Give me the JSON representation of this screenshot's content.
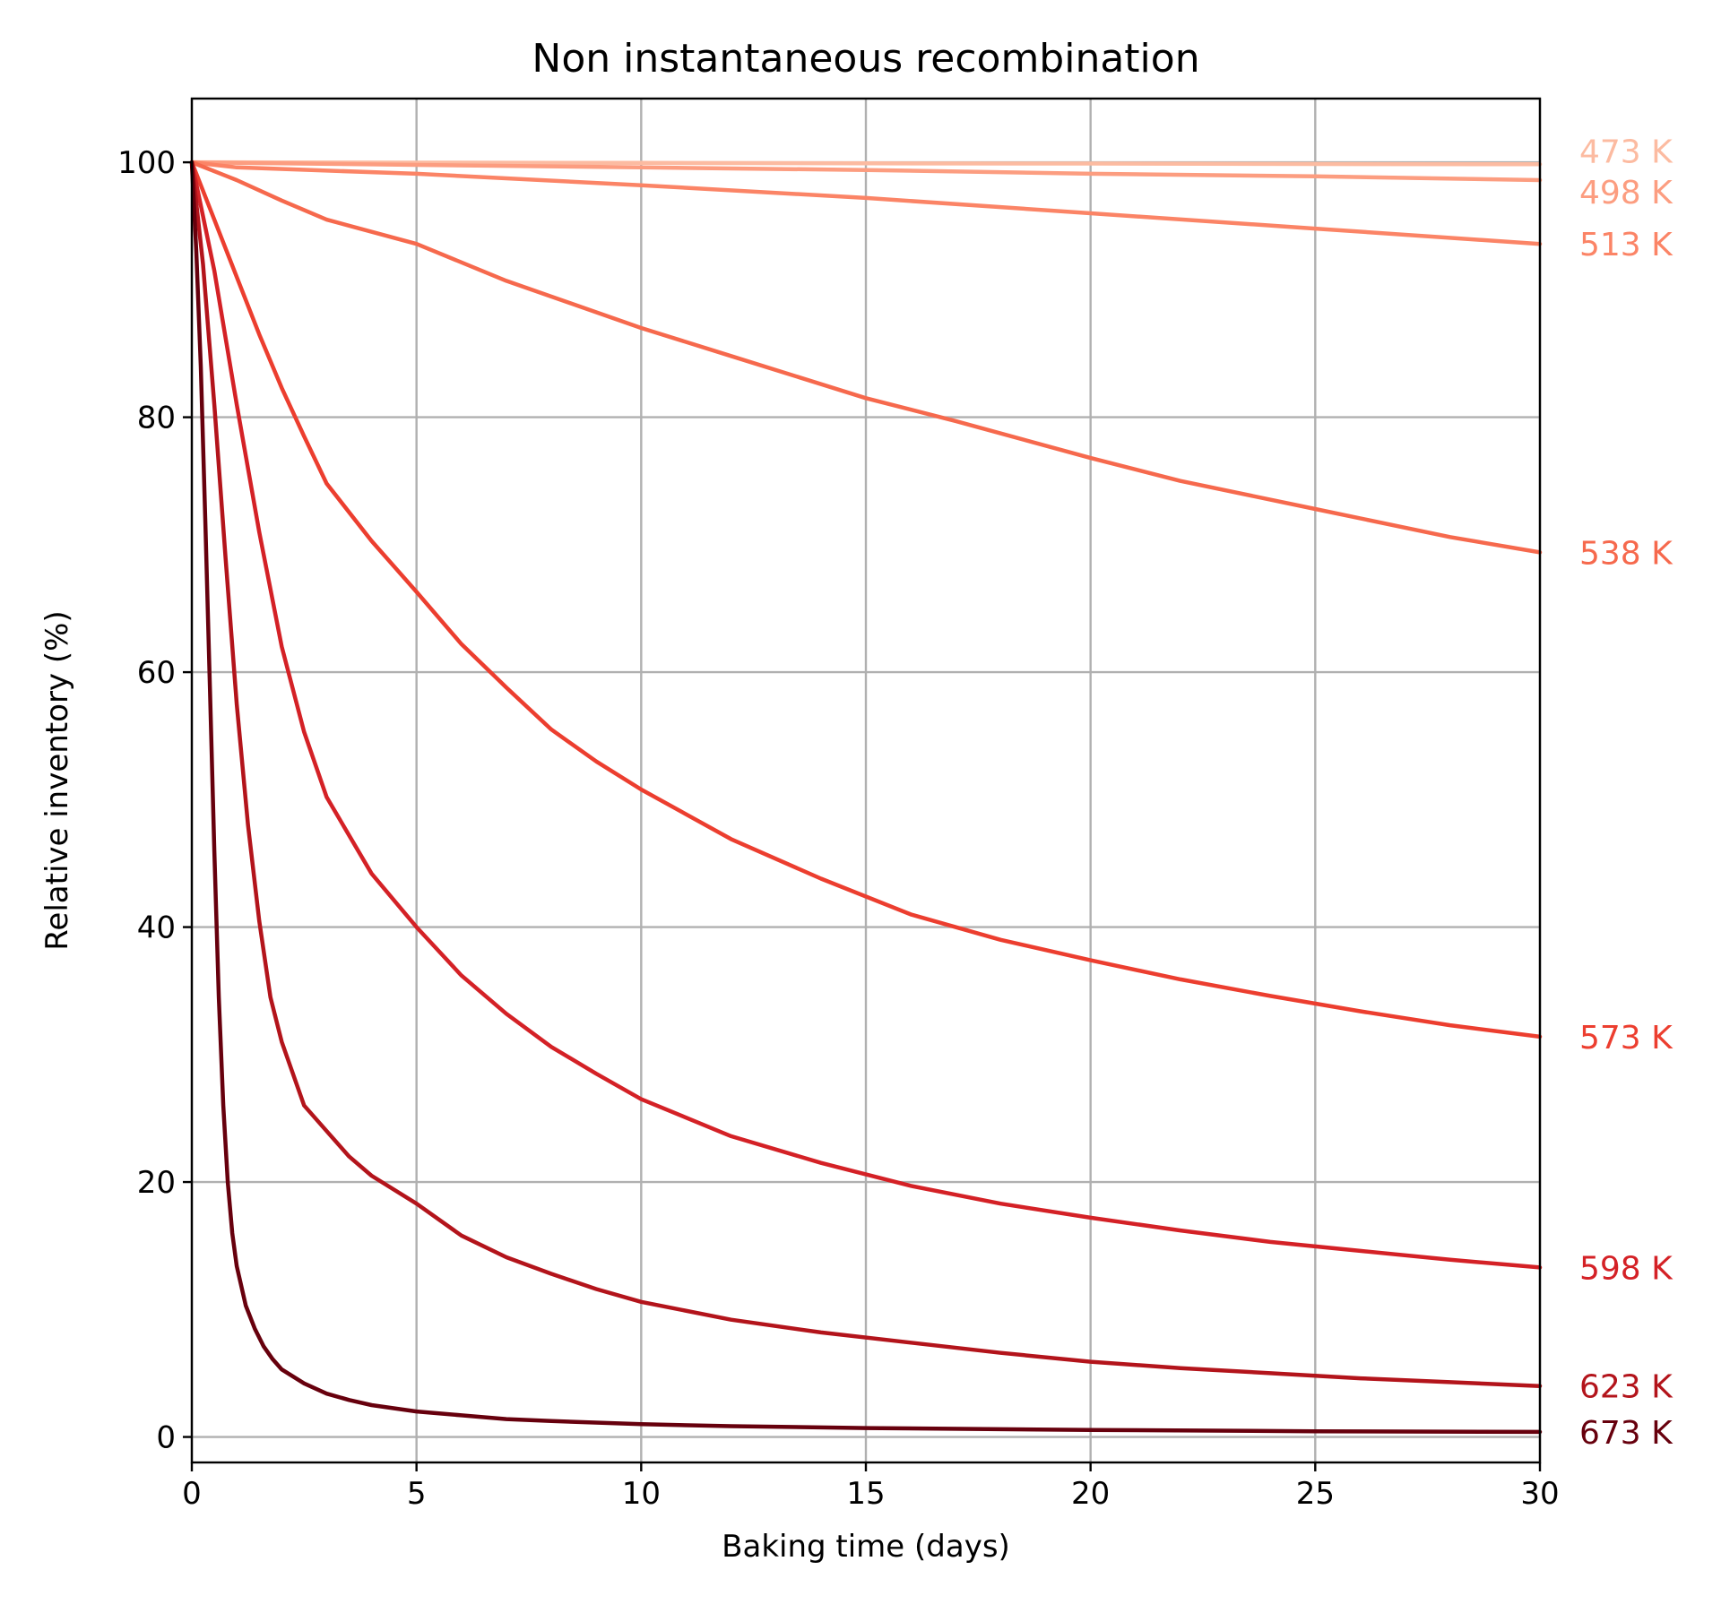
{
  "chart_data": {
    "type": "line",
    "title": "Non instantaneous recombination",
    "xlabel": "Baking time (days)",
    "ylabel": "Relative inventory (%)",
    "xlim": [
      0,
      30
    ],
    "ylim": [
      -2,
      105
    ],
    "xticks": [
      0,
      5,
      10,
      15,
      20,
      25,
      30
    ],
    "yticks": [
      0,
      20,
      40,
      60,
      80,
      100
    ],
    "grid": true,
    "legend": "none (series labels at right end of lines)",
    "series": [
      {
        "name": "473 K",
        "color": "#fcbba1",
        "x": [
          0,
          5,
          10,
          15,
          20,
          25,
          30
        ],
        "y": [
          100,
          99.97,
          99.95,
          99.92,
          99.9,
          99.87,
          99.85
        ]
      },
      {
        "name": "498 K",
        "color": "#fc9d80",
        "x": [
          0,
          5,
          10,
          15,
          20,
          25,
          30
        ],
        "y": [
          100,
          99.8,
          99.6,
          99.4,
          99.1,
          98.9,
          98.6
        ]
      },
      {
        "name": "513 K",
        "color": "#fb8466",
        "x": [
          0,
          1,
          5,
          10,
          15,
          20,
          25,
          30
        ],
        "y": [
          100,
          99.6,
          99.1,
          98.2,
          97.2,
          96.0,
          94.8,
          93.6
        ]
      },
      {
        "name": "538 K",
        "color": "#f6694d",
        "x": [
          0,
          1,
          2,
          3,
          5,
          7,
          10,
          12,
          15,
          17,
          20,
          22,
          25,
          28,
          30
        ],
        "y": [
          100,
          98.6,
          97.0,
          95.5,
          93.6,
          90.7,
          87.0,
          84.8,
          81.5,
          79.7,
          76.8,
          75.0,
          72.8,
          70.6,
          69.4
        ]
      },
      {
        "name": "573 K",
        "color": "#ec3e2f",
        "x": [
          0,
          0.5,
          1,
          1.5,
          2,
          2.5,
          3,
          4,
          5,
          6,
          7,
          8,
          9,
          10,
          12,
          14,
          16,
          18,
          20,
          22,
          24,
          26,
          28,
          30
        ],
        "y": [
          100,
          95.5,
          91.0,
          86.5,
          82.3,
          78.5,
          74.8,
          70.3,
          66.3,
          62.2,
          58.8,
          55.5,
          53.0,
          50.8,
          46.9,
          43.8,
          41.0,
          39.0,
          37.4,
          35.9,
          34.6,
          33.4,
          32.3,
          31.4
        ]
      },
      {
        "name": "598 K",
        "color": "#d42126",
        "x": [
          0,
          0.5,
          1,
          1.5,
          2,
          2.5,
          3,
          4,
          5,
          6,
          7,
          8,
          9,
          10,
          12,
          14,
          16,
          18,
          20,
          22,
          24,
          26,
          28,
          30
        ],
        "y": [
          100,
          91.5,
          81.0,
          71.0,
          62.0,
          55.3,
          50.2,
          44.2,
          40.0,
          36.2,
          33.2,
          30.6,
          28.5,
          26.5,
          23.6,
          21.5,
          19.7,
          18.3,
          17.2,
          16.2,
          15.3,
          14.6,
          13.9,
          13.3
        ]
      },
      {
        "name": "623 K",
        "color": "#b3141b",
        "x": [
          0,
          0.25,
          0.5,
          0.75,
          1,
          1.25,
          1.5,
          1.75,
          2,
          2.5,
          3,
          3.5,
          4,
          5,
          6,
          7,
          8,
          9,
          10,
          12,
          14,
          16,
          18,
          20,
          22,
          24,
          26,
          28,
          30
        ],
        "y": [
          100,
          92.0,
          81.0,
          69.0,
          57.5,
          48.0,
          40.5,
          34.5,
          31.0,
          26.0,
          24.0,
          22.0,
          20.5,
          18.3,
          15.8,
          14.1,
          12.8,
          11.6,
          10.6,
          9.2,
          8.2,
          7.4,
          6.6,
          5.9,
          5.4,
          5.0,
          4.6,
          4.3,
          4.0
        ]
      },
      {
        "name": "673 K",
        "color": "#67000d",
        "x": [
          0,
          0.1,
          0.2,
          0.3,
          0.4,
          0.5,
          0.6,
          0.7,
          0.8,
          0.9,
          1.0,
          1.2,
          1.4,
          1.6,
          1.8,
          2.0,
          2.5,
          3,
          3.5,
          4,
          5,
          6,
          7,
          8,
          10,
          12,
          15,
          20,
          25,
          30
        ],
        "y": [
          100,
          93.0,
          84.0,
          72.0,
          59.0,
          46.0,
          34.5,
          26.0,
          20.0,
          16.0,
          13.4,
          10.3,
          8.5,
          7.1,
          6.1,
          5.3,
          4.2,
          3.4,
          2.9,
          2.5,
          2.0,
          1.7,
          1.4,
          1.25,
          1.0,
          0.85,
          0.7,
          0.55,
          0.45,
          0.4
        ]
      }
    ],
    "series_labels": [
      {
        "text": "473 K",
        "color": "#fcbba1",
        "anchor_value": 100.9
      },
      {
        "text": "498 K",
        "color": "#fc9d80",
        "anchor_value": 97.7
      },
      {
        "text": "513 K",
        "color": "#fb8466",
        "anchor_value": 93.6
      },
      {
        "text": "538 K",
        "color": "#f6694d",
        "anchor_value": 69.4
      },
      {
        "text": "573 K",
        "color": "#ec3e2f",
        "anchor_value": 31.4
      },
      {
        "text": "598 K",
        "color": "#d42126",
        "anchor_value": 13.3
      },
      {
        "text": "623 K",
        "color": "#b3141b",
        "anchor_value": 4.0
      },
      {
        "text": "673 K",
        "color": "#67000d",
        "anchor_value": 0.4
      }
    ]
  }
}
